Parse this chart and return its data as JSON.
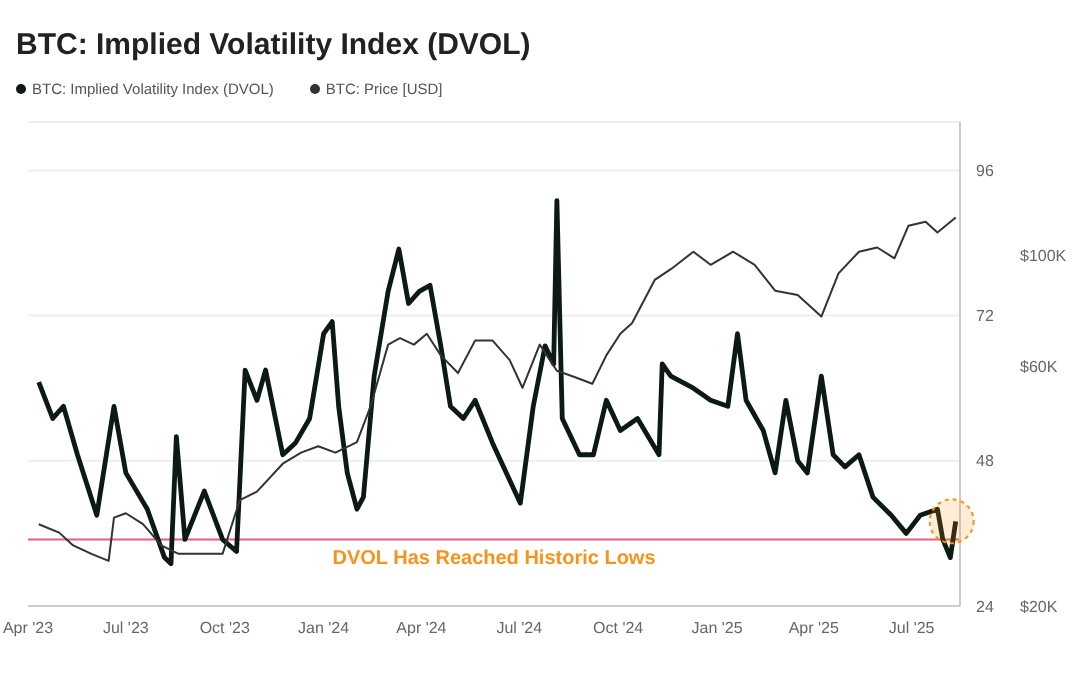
{
  "chart_data": {
    "type": "line",
    "title": "BTC: Implied Volatility Index (DVOL)",
    "series": [
      {
        "name": "BTC: Implied Volatility Index (DVOL)",
        "color": "#0b1a12",
        "axis": "y",
        "x": [
          "2023-04-11",
          "2023-04-24",
          "2023-05-04",
          "2023-05-17",
          "2023-06-04",
          "2023-06-20",
          "2023-07-01",
          "2023-07-21",
          "2023-08-06",
          "2023-08-12",
          "2023-08-17",
          "2023-08-25",
          "2023-09-12",
          "2023-09-29",
          "2023-10-12",
          "2023-10-20",
          "2023-10-31",
          "2023-11-08",
          "2023-11-24",
          "2023-12-06",
          "2023-12-19",
          "2024-01-01",
          "2024-01-09",
          "2024-01-15",
          "2024-01-23",
          "2024-02-01",
          "2024-02-07",
          "2024-02-17",
          "2024-03-01",
          "2024-03-11",
          "2024-03-20",
          "2024-03-30",
          "2024-04-09",
          "2024-04-19",
          "2024-04-28",
          "2024-05-10",
          "2024-05-21",
          "2024-06-06",
          "2024-06-19",
          "2024-07-02",
          "2024-07-14",
          "2024-07-25",
          "2024-08-02",
          "2024-08-05",
          "2024-08-10",
          "2024-08-26",
          "2024-09-08",
          "2024-09-20",
          "2024-10-03",
          "2024-10-19",
          "2024-11-08",
          "2024-11-11",
          "2024-11-19",
          "2024-12-10",
          "2024-12-26",
          "2025-01-11",
          "2025-01-20",
          "2025-01-28",
          "2025-02-13",
          "2025-02-24",
          "2025-03-06",
          "2025-03-17",
          "2025-03-26",
          "2025-04-08",
          "2025-04-19",
          "2025-04-30",
          "2025-05-13",
          "2025-05-26",
          "2025-06-12",
          "2025-06-26",
          "2025-07-09",
          "2025-07-25",
          "2025-07-30",
          "2025-08-06",
          "2025-08-11"
        ],
        "values": [
          61,
          55,
          57,
          49,
          39,
          57,
          46,
          40,
          32,
          31,
          52,
          35,
          43,
          35,
          33,
          63,
          58,
          63,
          49,
          51,
          55,
          69,
          71,
          57,
          46,
          40,
          42,
          62,
          76,
          83,
          74,
          76,
          77,
          67,
          57,
          55,
          58,
          51,
          46,
          41,
          57,
          67,
          64,
          91,
          55,
          49,
          49,
          58,
          53,
          55,
          49,
          64,
          62,
          60,
          58,
          57,
          69,
          58,
          53,
          46,
          58,
          48,
          46,
          62,
          49,
          47,
          49,
          42,
          39,
          36,
          39,
          40,
          35,
          32,
          38
        ]
      },
      {
        "name": "BTC: Price [USD]",
        "color": "#333333",
        "axis": "y2",
        "x": [
          "2023-04-11",
          "2023-04-30",
          "2023-05-13",
          "2023-05-30",
          "2023-06-15",
          "2023-06-20",
          "2023-07-01",
          "2023-07-17",
          "2023-08-03",
          "2023-08-19",
          "2023-09-12",
          "2023-09-29",
          "2023-10-15",
          "2023-10-31",
          "2023-11-24",
          "2023-12-11",
          "2023-12-27",
          "2024-01-12",
          "2024-02-01",
          "2024-02-14",
          "2024-03-01",
          "2024-03-12",
          "2024-03-25",
          "2024-04-06",
          "2024-04-19",
          "2024-05-05",
          "2024-05-21",
          "2024-06-06",
          "2024-06-22",
          "2024-07-04",
          "2024-07-20",
          "2024-08-05",
          "2024-08-22",
          "2024-09-07",
          "2024-09-20",
          "2024-10-03",
          "2024-10-14",
          "2024-11-04",
          "2024-11-19",
          "2024-12-10",
          "2024-12-26",
          "2025-01-16",
          "2025-02-05",
          "2025-02-24",
          "2025-03-17",
          "2025-04-08",
          "2025-04-24",
          "2025-05-13",
          "2025-05-30",
          "2025-06-15",
          "2025-06-28",
          "2025-07-14",
          "2025-07-25",
          "2025-08-11"
        ],
        "values": [
          29100,
          28000,
          26400,
          25400,
          24600,
          30000,
          30600,
          29100,
          26400,
          25400,
          25400,
          25400,
          32500,
          33800,
          38400,
          40400,
          41600,
          40400,
          42400,
          50200,
          66300,
          68300,
          66300,
          69700,
          63100,
          58200,
          67600,
          67600,
          61800,
          54400,
          66300,
          58800,
          57100,
          55400,
          63100,
          69700,
          73200,
          89200,
          93700,
          101500,
          95600,
          101500,
          95600,
          84900,
          83200,
          75400,
          91900,
          101500,
          103500,
          98500,
          114300,
          116500,
          110900,
          118800
        ]
      }
    ],
    "xlim": [
      "2023-04-01",
      "2025-08-15"
    ],
    "xticks": [
      {
        "value": "2023-04-01",
        "label": "Apr '23"
      },
      {
        "value": "2023-07-01",
        "label": "Jul '23"
      },
      {
        "value": "2023-10-01",
        "label": "Oct '23"
      },
      {
        "value": "2024-01-01",
        "label": "Jan '24"
      },
      {
        "value": "2024-04-01",
        "label": "Apr '24"
      },
      {
        "value": "2024-07-01",
        "label": "Jul '24"
      },
      {
        "value": "2024-10-01",
        "label": "Oct '24"
      },
      {
        "value": "2025-01-01",
        "label": "Jan '25"
      },
      {
        "value": "2025-04-01",
        "label": "Apr '25"
      },
      {
        "value": "2025-07-01",
        "label": "Jul '25"
      }
    ],
    "ylim": [
      24,
      104
    ],
    "yticks": [
      24,
      48,
      72,
      96
    ],
    "y2lim": [
      20000,
      184000
    ],
    "y2ticks": [
      {
        "value": 20000,
        "label": "$20K"
      },
      {
        "value": 60000,
        "label": "$60K"
      },
      {
        "value": 100000,
        "label": "$100K"
      }
    ],
    "log": "y2",
    "ref_lines": [
      {
        "axis": "y",
        "value": 35,
        "label": "DVOL Has Reached Historic Lows",
        "color": "#e0607e"
      }
    ],
    "grid": "y",
    "legend": "top left",
    "marker": "none",
    "line_style": "solid"
  }
}
